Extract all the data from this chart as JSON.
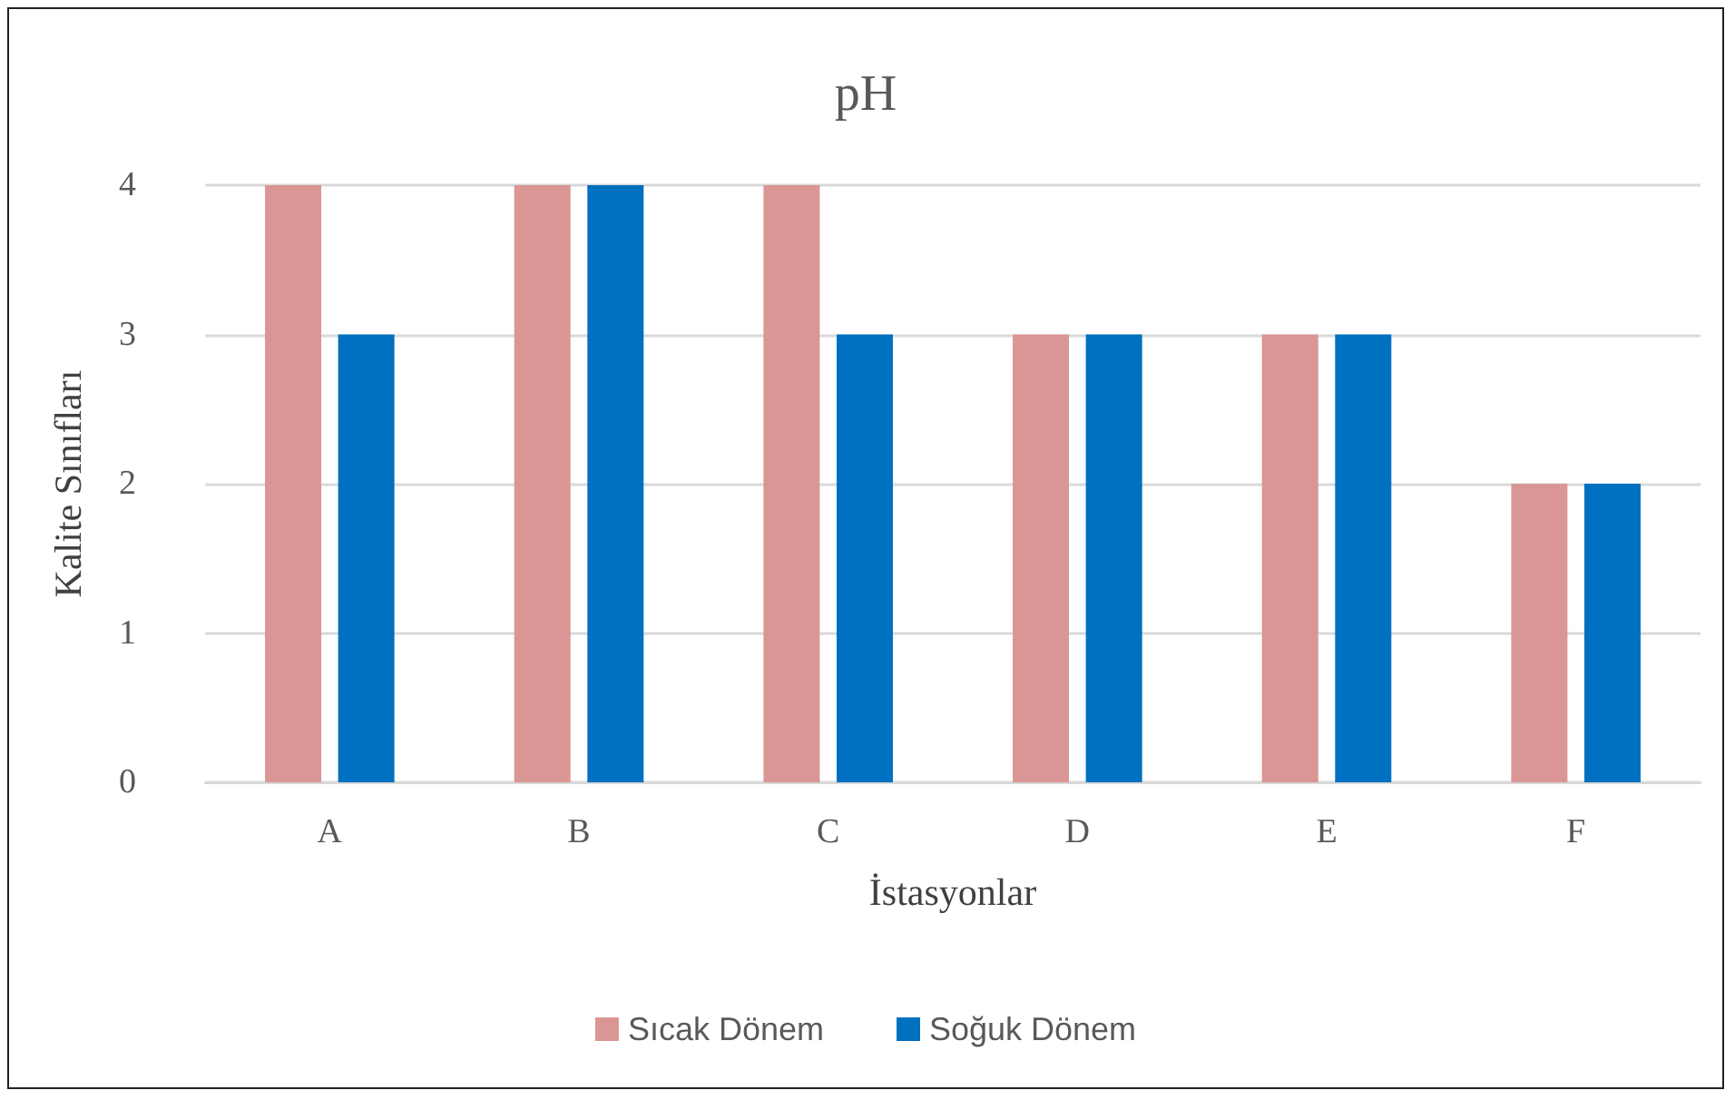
{
  "chart_data": {
    "type": "bar",
    "title": "pH",
    "xlabel": "İstasyonlar",
    "ylabel": "Kalite Sınıfları",
    "categories": [
      "A",
      "B",
      "C",
      "D",
      "E",
      "F"
    ],
    "series": [
      {
        "name": "Sıcak Dönem",
        "color": "#d99694",
        "values": [
          4,
          4,
          4,
          3,
          3,
          2
        ]
      },
      {
        "name": "Soğuk Dönem",
        "color": "#0070c0",
        "values": [
          3,
          4,
          3,
          3,
          3,
          2
        ]
      }
    ],
    "ylim": [
      0,
      4
    ],
    "yticks": [
      0,
      1,
      2,
      3,
      4
    ],
    "grid": "y",
    "legend": "bottom"
  }
}
